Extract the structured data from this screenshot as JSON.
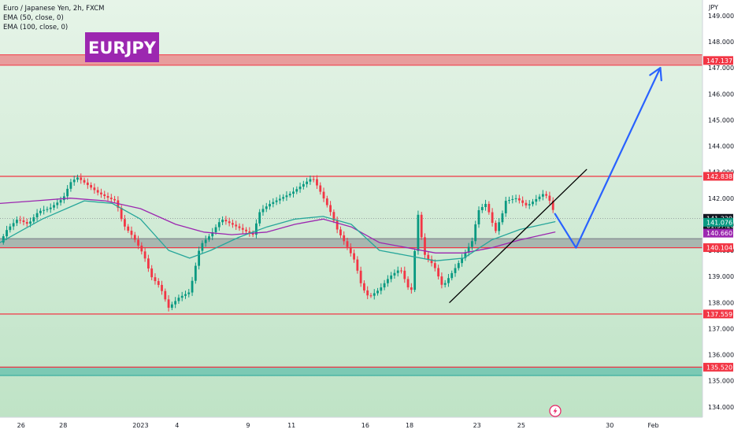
{
  "header": {
    "symbol_title": "Euro / Japanese Yen, 2h, FXCM",
    "indicators": [
      "EMA (50, close, 0)",
      "EMA (100, close, 0)"
    ],
    "badge": "EURJPY",
    "badge_color": "#9c27b0"
  },
  "chart_data": {
    "type": "candlestick",
    "currency": "JPY",
    "ylim": [
      133.6,
      149.6
    ],
    "y_ticks": [
      134,
      135,
      136,
      137,
      138,
      139,
      140,
      141,
      142,
      143,
      144,
      145,
      146,
      147,
      148,
      149
    ],
    "y_tick_labels": [
      "134.000",
      "135.000",
      "136.000",
      "137.000",
      "138.000",
      "139.000",
      "140.000",
      "141.000",
      "142.000",
      "143.000",
      "144.000",
      "145.000",
      "146.000",
      "147.000",
      "148.000",
      "149.000"
    ],
    "x_labels": [
      {
        "label": "26",
        "at": 0.03
      },
      {
        "label": "28",
        "at": 0.09
      },
      {
        "label": "2023",
        "at": 0.2
      },
      {
        "label": "4",
        "at": 0.252
      },
      {
        "label": "9",
        "at": 0.353
      },
      {
        "label": "11",
        "at": 0.415
      },
      {
        "label": "16",
        "at": 0.52
      },
      {
        "label": "18",
        "at": 0.583
      },
      {
        "label": "23",
        "at": 0.679
      },
      {
        "label": "25",
        "at": 0.742
      },
      {
        "label": "30",
        "at": 0.868
      },
      {
        "label": "Feb",
        "at": 0.93
      }
    ],
    "price_path": [
      [
        0.0,
        140.3
      ],
      [
        0.01,
        140.8
      ],
      [
        0.025,
        141.2
      ],
      [
        0.04,
        141.0
      ],
      [
        0.055,
        141.5
      ],
      [
        0.07,
        141.6
      ],
      [
        0.09,
        142.0
      ],
      [
        0.1,
        142.6
      ],
      [
        0.11,
        142.8
      ],
      [
        0.125,
        142.5
      ],
      [
        0.14,
        142.2
      ],
      [
        0.155,
        142.0
      ],
      [
        0.165,
        141.9
      ],
      [
        0.175,
        141.0
      ],
      [
        0.19,
        140.5
      ],
      [
        0.205,
        139.8
      ],
      [
        0.215,
        139.0
      ],
      [
        0.228,
        138.6
      ],
      [
        0.24,
        137.8
      ],
      [
        0.255,
        138.2
      ],
      [
        0.27,
        138.4
      ],
      [
        0.285,
        140.2
      ],
      [
        0.3,
        140.6
      ],
      [
        0.315,
        141.2
      ],
      [
        0.33,
        141.0
      ],
      [
        0.345,
        140.8
      ],
      [
        0.36,
        140.6
      ],
      [
        0.37,
        141.5
      ],
      [
        0.385,
        141.8
      ],
      [
        0.4,
        142.0
      ],
      [
        0.415,
        142.2
      ],
      [
        0.43,
        142.5
      ],
      [
        0.445,
        142.8
      ],
      [
        0.455,
        142.3
      ],
      [
        0.47,
        141.5
      ],
      [
        0.48,
        140.8
      ],
      [
        0.495,
        140.1
      ],
      [
        0.505,
        139.6
      ],
      [
        0.515,
        138.6
      ],
      [
        0.525,
        138.2
      ],
      [
        0.54,
        138.5
      ],
      [
        0.555,
        139.0
      ],
      [
        0.57,
        139.3
      ],
      [
        0.585,
        138.3
      ],
      [
        0.595,
        141.4
      ],
      [
        0.6,
        140.5
      ],
      [
        0.605,
        139.8
      ],
      [
        0.618,
        139.4
      ],
      [
        0.63,
        138.6
      ],
      [
        0.645,
        139.2
      ],
      [
        0.66,
        139.8
      ],
      [
        0.673,
        140.4
      ],
      [
        0.68,
        141.5
      ],
      [
        0.692,
        141.8
      ],
      [
        0.705,
        140.7
      ],
      [
        0.715,
        141.4
      ],
      [
        0.72,
        141.9
      ],
      [
        0.735,
        142.0
      ],
      [
        0.75,
        141.7
      ],
      [
        0.765,
        142.0
      ],
      [
        0.775,
        142.2
      ],
      [
        0.785,
        141.8
      ],
      [
        0.79,
        141.23
      ]
    ],
    "ema_50_path": [
      [
        0.0,
        140.3
      ],
      [
        0.06,
        141.2
      ],
      [
        0.12,
        141.9
      ],
      [
        0.16,
        141.8
      ],
      [
        0.2,
        141.2
      ],
      [
        0.24,
        140.0
      ],
      [
        0.27,
        139.7
      ],
      [
        0.3,
        140.0
      ],
      [
        0.34,
        140.5
      ],
      [
        0.38,
        140.9
      ],
      [
        0.42,
        141.2
      ],
      [
        0.46,
        141.3
      ],
      [
        0.5,
        141.0
      ],
      [
        0.54,
        140.0
      ],
      [
        0.58,
        139.8
      ],
      [
        0.62,
        139.6
      ],
      [
        0.66,
        139.7
      ],
      [
        0.7,
        140.4
      ],
      [
        0.74,
        140.8
      ],
      [
        0.79,
        141.1
      ]
    ],
    "ema_100_path": [
      [
        0.0,
        141.8
      ],
      [
        0.05,
        141.9
      ],
      [
        0.1,
        142.0
      ],
      [
        0.15,
        141.9
      ],
      [
        0.2,
        141.6
      ],
      [
        0.25,
        141.0
      ],
      [
        0.29,
        140.7
      ],
      [
        0.33,
        140.6
      ],
      [
        0.38,
        140.7
      ],
      [
        0.42,
        141.0
      ],
      [
        0.46,
        141.2
      ],
      [
        0.5,
        140.9
      ],
      [
        0.54,
        140.3
      ],
      [
        0.58,
        140.1
      ],
      [
        0.62,
        139.9
      ],
      [
        0.66,
        139.9
      ],
      [
        0.7,
        140.1
      ],
      [
        0.74,
        140.4
      ],
      [
        0.79,
        140.7
      ]
    ],
    "trendline": [
      [
        0.64,
        138.0
      ],
      [
        0.835,
        143.1
      ]
    ],
    "projection_path": [
      [
        0.79,
        141.4
      ],
      [
        0.82,
        140.1
      ],
      [
        0.94,
        147.0
      ]
    ],
    "horizontal_levels": [
      {
        "value": 142.838,
        "label": "142.838",
        "color": "#f23645"
      },
      {
        "value": 140.104,
        "label": "140.104",
        "color": "#f23645"
      },
      {
        "value": 137.559,
        "label": "137.559",
        "color": "#f23645"
      },
      {
        "value": 135.52,
        "label": "135.520",
        "color": "#f23645"
      }
    ],
    "zones": [
      {
        "from": 147.1,
        "to": 147.5,
        "label": "147.137",
        "color": "#f23645"
      },
      {
        "from": 140.1,
        "to": 140.45,
        "color": "#787b86"
      },
      {
        "from": 135.2,
        "to": 135.52,
        "color": "#26a69a"
      }
    ],
    "price_tags": [
      {
        "value": 141.229,
        "label": "141.229",
        "sublabel": "01:37:20",
        "color": "#131722"
      },
      {
        "value": 141.076,
        "label": "141.076",
        "color": "#089981"
      },
      {
        "value": 140.66,
        "label": "140.660",
        "color": "#9c27b0"
      }
    ],
    "colors": {
      "background_top": "#e6f4e8",
      "background_bottom": "#bfe3c6",
      "candle_up": "#089981",
      "candle_down": "#f23645",
      "ema_50": "#26a69a",
      "ema_100": "#9c27b0",
      "projection": "#2962ff",
      "trendline": "#000000"
    }
  }
}
